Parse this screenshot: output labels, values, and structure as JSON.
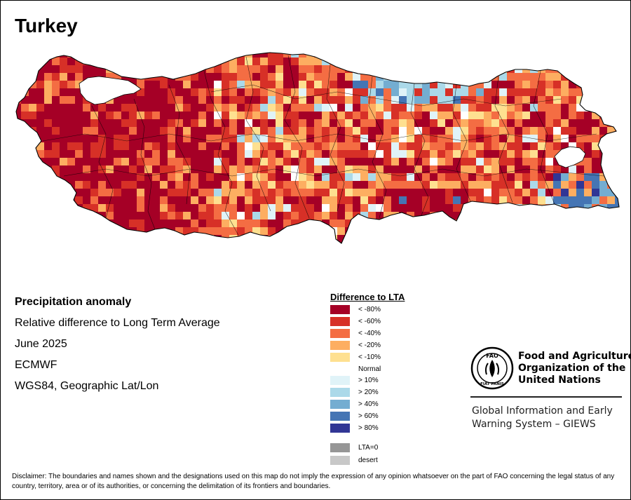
{
  "map": {
    "title": "Turkey",
    "region": "Turkey",
    "colors": {
      "ocean": "#ffffff",
      "border": "#000000"
    }
  },
  "info": {
    "heading": "Precipitation anomaly",
    "line1": "Relative difference to Long Term Average",
    "line2": "June 2025",
    "line3": "ECMWF",
    "line4": "WGS84, Geographic Lat/Lon"
  },
  "legend": {
    "title": "Difference to LTA",
    "items": [
      {
        "label": "< -80%",
        "color": "#a50026"
      },
      {
        "label": "< -60%",
        "color": "#d73027"
      },
      {
        "label": "< -40%",
        "color": "#f46d43"
      },
      {
        "label": "< -20%",
        "color": "#fdae61"
      },
      {
        "label": "< -10%",
        "color": "#fee090"
      },
      {
        "label": "Normal",
        "color": "#ffffff"
      },
      {
        "label": "> 10%",
        "color": "#e0f3f8"
      },
      {
        "label": "> 20%",
        "color": "#abd9e9"
      },
      {
        "label": "> 40%",
        "color": "#74add1"
      },
      {
        "label": "> 60%",
        "color": "#4575b4"
      },
      {
        "label": "> 80%",
        "color": "#313695"
      },
      {
        "label": "LTA=0",
        "color": "#969696"
      },
      {
        "label": "desert",
        "color": "#c8c8c8"
      }
    ]
  },
  "organization": {
    "logo_text_top": "FAO",
    "logo_text_bottom": "FIAT PANIS",
    "name_line1": "Food and Agriculture",
    "name_line2": "Organization of the",
    "name_line3": "United Nations",
    "program_line1": "Global Information and Early",
    "program_line2": "Warning System – GIEWS"
  },
  "disclaimer": "Disclaimer: The boundaries and names shown and the designations used on this map do not imply the expression of any opinion whatsoever on the part of FAO concerning the legal status of any country, territory, area or of its authorities, or concerning the delimitation of its frontiers and boundaries."
}
